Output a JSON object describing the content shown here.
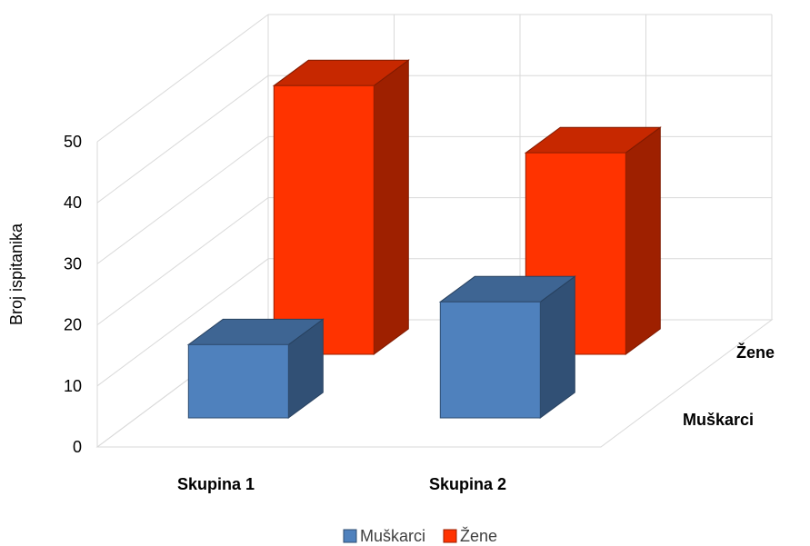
{
  "chart_data": {
    "type": "bar",
    "subtype": "3d-column",
    "categories": [
      "Skupina 1",
      "Skupina 2"
    ],
    "depth_labels": [
      "Muškarci",
      "Žene"
    ],
    "series": [
      {
        "name": "Muškarci",
        "values": [
          12,
          19
        ],
        "color": "#4F81BD"
      },
      {
        "name": "Žene",
        "values": [
          44,
          33
        ],
        "color": "#FF3300"
      }
    ],
    "ylabel": "Broj ispitanika",
    "yticks": [
      0,
      10,
      20,
      30,
      40,
      50
    ],
    "ylim": [
      0,
      50
    ],
    "grid": true,
    "legend": {
      "position": "bottom",
      "entries": [
        "Muškarci",
        "Žene"
      ]
    }
  }
}
